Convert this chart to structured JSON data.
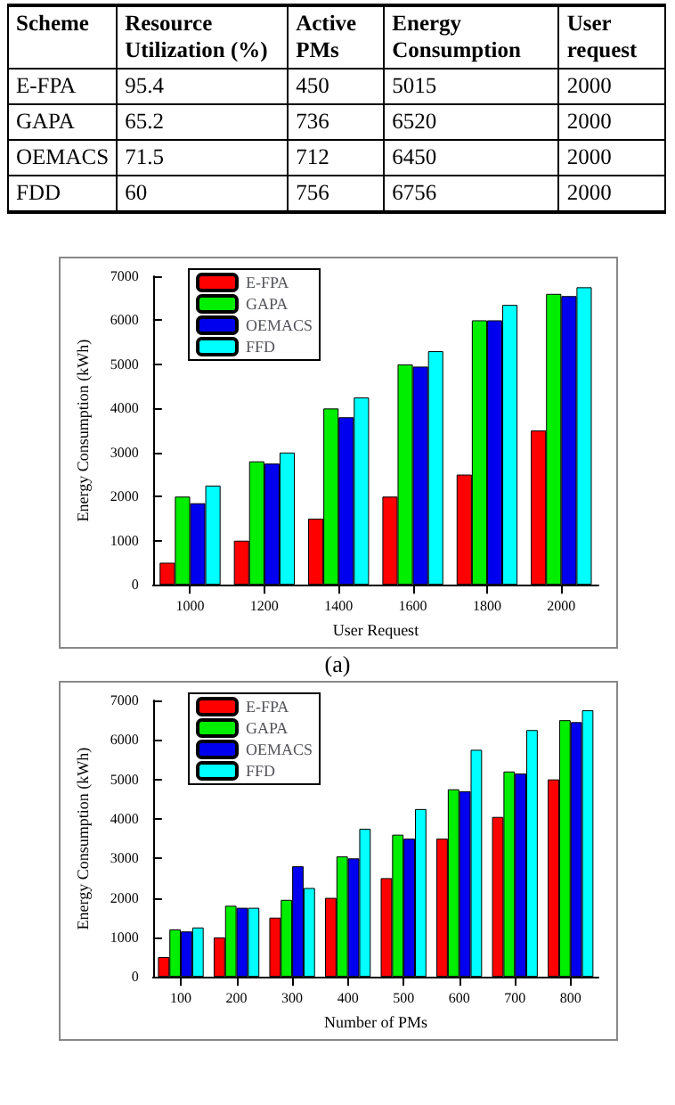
{
  "chart_data": [
    {
      "type": "other",
      "categories": [
        "Scheme",
        "Resource Utilization (%)",
        "Active PMs",
        "Energy Consumption",
        "User request"
      ],
      "y_categories": [
        "E-FPA",
        "GAPA",
        "OEMACS",
        "FDD"
      ],
      "cell_labels": [
        [
          "95.4",
          "450",
          "5015",
          "2000"
        ],
        [
          "65.2",
          "736",
          "6520",
          "2000"
        ],
        [
          "71.5",
          "712",
          "6450",
          "2000"
        ],
        [
          "60",
          "756",
          "6756",
          "2000"
        ]
      ]
    },
    {
      "type": "bar",
      "xlabel": "User Request",
      "ylabel": "Energy Consumption (kWh)",
      "categories": [
        "1000",
        "1200",
        "1400",
        "1600",
        "1800",
        "2000"
      ],
      "series": [
        {
          "name": "E-FPA",
          "color": "#ff0000",
          "values": [
            500,
            1000,
            1500,
            2000,
            2500,
            3500
          ]
        },
        {
          "name": "GAPA",
          "color": "#00ee00",
          "values": [
            2000,
            2800,
            4000,
            5000,
            6000,
            6600
          ]
        },
        {
          "name": "OEMACS",
          "color": "#0000ee",
          "values": [
            1850,
            2750,
            3800,
            4950,
            6000,
            6550
          ]
        },
        {
          "name": "FFD",
          "color": "#00ffff",
          "values": [
            2250,
            3000,
            4250,
            5300,
            6350,
            6750
          ]
        }
      ],
      "ylim": [
        0,
        7000
      ],
      "yticks": [
        0,
        1000,
        2000,
        3000,
        4000,
        5000,
        6000,
        7000
      ],
      "grid": false,
      "legend": "top left",
      "annotations": [
        "(a)"
      ]
    },
    {
      "type": "bar",
      "xlabel": "Number of PMs",
      "ylabel": "Energy Consumption (kWh)",
      "categories": [
        "100",
        "200",
        "300",
        "400",
        "500",
        "600",
        "700",
        "800"
      ],
      "series": [
        {
          "name": "E-FPA",
          "color": "#ff0000",
          "values": [
            500,
            1000,
            1500,
            2000,
            2500,
            3500,
            4050,
            5000
          ]
        },
        {
          "name": "GAPA",
          "color": "#00ee00",
          "values": [
            1200,
            1800,
            1950,
            3050,
            3600,
            4750,
            5200,
            6500
          ]
        },
        {
          "name": "OEMACS",
          "color": "#0000ee",
          "values": [
            1150,
            1750,
            2800,
            3000,
            3500,
            4700,
            5150,
            6450
          ]
        },
        {
          "name": "FFD",
          "color": "#00ffff",
          "values": [
            1250,
            1750,
            2250,
            3750,
            4250,
            5750,
            6250,
            6750
          ]
        }
      ],
      "ylim": [
        0,
        7000
      ],
      "yticks": [
        0,
        1000,
        2000,
        3000,
        4000,
        5000,
        6000,
        7000
      ],
      "grid": false,
      "legend": "top left"
    }
  ]
}
